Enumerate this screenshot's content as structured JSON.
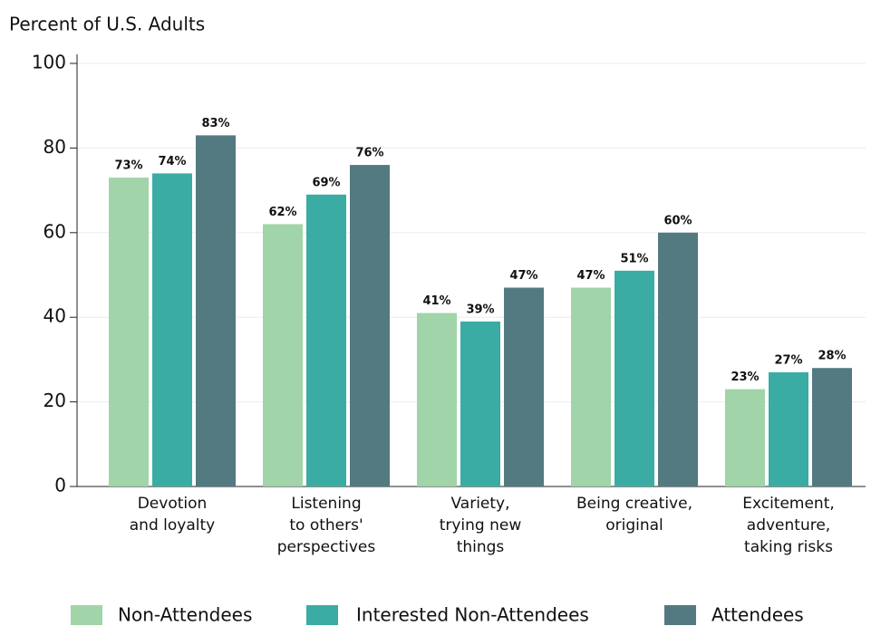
{
  "chart_data": {
    "type": "bar",
    "y_axis_label": "Percent of U.S. Adults",
    "categories": [
      [
        "Devotion",
        "and loyalty"
      ],
      [
        "Listening",
        "to others'",
        "perspectives"
      ],
      [
        "Variety,",
        "trying new",
        "things"
      ],
      [
        "Being creative,",
        "original"
      ],
      [
        "Excitement,",
        "adventure,",
        "taking risks"
      ]
    ],
    "series": [
      {
        "name": "Non-Attendees",
        "color": "#a1d4a8",
        "values": [
          73,
          62,
          41,
          47,
          23
        ],
        "value_labels": [
          "73%",
          "62%",
          "41%",
          "47%",
          "23%"
        ]
      },
      {
        "name": "Interested Non-Attendees",
        "color": "#3aaca4",
        "values": [
          74,
          69,
          39,
          51,
          27
        ],
        "value_labels": [
          "74%",
          "69%",
          "39%",
          "51%",
          "27%"
        ]
      },
      {
        "name": "Attendees",
        "color": "#527a80",
        "values": [
          83,
          76,
          47,
          60,
          28
        ],
        "value_labels": [
          "83%",
          "76%",
          "47%",
          "60%",
          "28%"
        ]
      }
    ],
    "ylim": [
      0,
      100
    ],
    "yticks": [
      0,
      20,
      40,
      60,
      80,
      100
    ],
    "grid": true,
    "legend": "bottom"
  }
}
